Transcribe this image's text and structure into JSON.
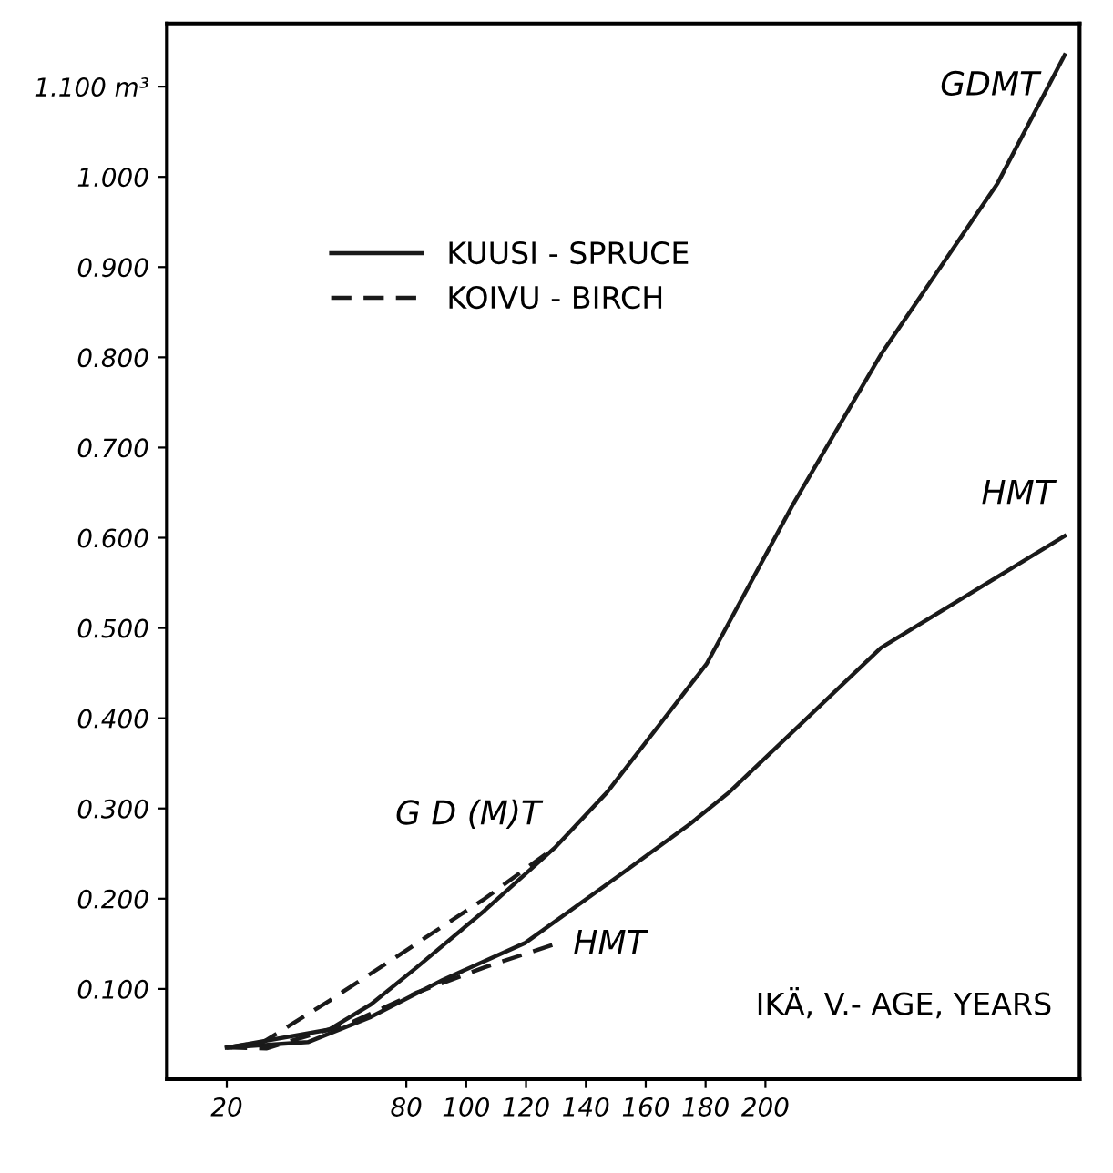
{
  "chart_data": {
    "type": "line",
    "xlabel": "IKÄ, V.- AGE, YEARS",
    "xlim": [
      0,
      305
    ],
    "xticks": [
      20,
      80,
      100,
      120,
      140,
      160,
      180,
      200
    ],
    "ylim": [
      0,
      1.17
    ],
    "yticks": [
      {
        "value": 0.1,
        "label": "0.100"
      },
      {
        "value": 0.2,
        "label": "0.200"
      },
      {
        "value": 0.3,
        "label": "0.300"
      },
      {
        "value": 0.4,
        "label": "0.400"
      },
      {
        "value": 0.5,
        "label": "0.500"
      },
      {
        "value": 0.6,
        "label": "0.600"
      },
      {
        "value": 0.7,
        "label": "0.700"
      },
      {
        "value": 0.8,
        "label": "0.800"
      },
      {
        "value": 0.9,
        "label": "0.900"
      },
      {
        "value": 1.0,
        "label": "1.000"
      },
      {
        "value": 1.1,
        "label": "1.100 m³"
      }
    ],
    "grid": false,
    "legend": "top left",
    "marker": "none",
    "series": [
      {
        "name": "KUUSI - SPRUCE",
        "color": "#1a1a1a",
        "line_style": "solid",
        "x": [
          20,
          54.3,
          68.2,
          83.5,
          106.2,
          130.1,
          147.1,
          180.3,
          209.4,
          238.6,
          277.6,
          300
        ],
        "values": [
          0.035,
          0.055,
          0.083,
          0.124,
          0.187,
          0.258,
          0.318,
          0.46,
          0.638,
          0.803,
          0.993,
          1.135
        ]
      },
      {
        "color": "#1a1a1a",
        "line_style": "solid",
        "x": [
          20,
          47.1,
          68.2,
          92.2,
          119.7,
          151.7,
          174.5,
          187.9,
          238.6,
          300
        ],
        "values": [
          0.035,
          0.041,
          0.069,
          0.11,
          0.151,
          0.227,
          0.282,
          0.318,
          0.478,
          0.602
        ]
      },
      {
        "name": "KOIVU - BIRCH",
        "color": "#1a1a1a",
        "line_style": "dashed",
        "x": [
          20,
          32.1,
          54.3,
          76.4,
          106.2,
          130.1
        ],
        "values": [
          0.035,
          0.041,
          0.087,
          0.135,
          0.2,
          0.258
        ]
      },
      {
        "color": "#1a1a1a",
        "line_style": "dashed",
        "x": [
          20,
          33.2,
          61.1,
          83.5,
          106.2,
          129
        ],
        "values": [
          0.035,
          0.034,
          0.062,
          0.096,
          0.124,
          0.149
        ]
      }
    ],
    "annotations": [
      {
        "text": "GDMT",
        "x": 300,
        "y": 1.135
      },
      {
        "text": "HMT",
        "x": 300,
        "y": 0.602
      },
      {
        "text": "G D (M)T",
        "x": 130.1,
        "y": 0.258
      },
      {
        "text": "HMT",
        "x": 129,
        "y": 0.149
      }
    ]
  }
}
